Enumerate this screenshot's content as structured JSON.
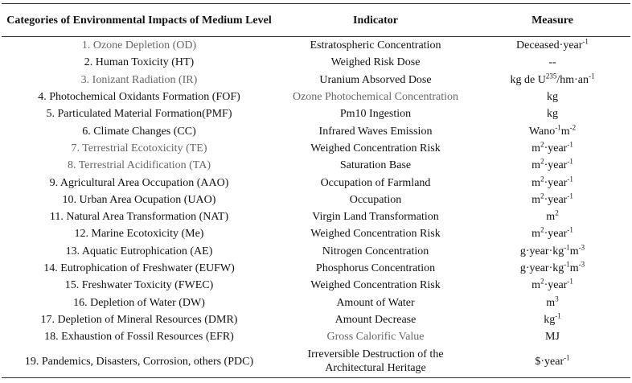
{
  "table": {
    "header": [
      "Categories of Environmental Impacts of Medium Level",
      "Indicator",
      "Measure"
    ],
    "rows": [
      [
        "1. Ozone Depletion (OD)",
        "Estratospheric Concentration",
        [
          "Deceased·year",
          "-1"
        ]
      ],
      [
        "2. Human Toxicity (HT)",
        "Weighed Risk Dose",
        [
          "--"
        ]
      ],
      [
        "3. Ionizant Radiation (IR)",
        "Uranium Absorved Dose",
        [
          "kg de U",
          "235",
          "/hm·an",
          "-1"
        ]
      ],
      [
        "4. Photochemical Oxidants Formation (FOF)",
        "Ozone Photochemical Concentration",
        [
          "kg"
        ]
      ],
      [
        "5. Particulated Material Formation(PMF)",
        "Pm10 Ingestion",
        [
          "kg"
        ]
      ],
      [
        "6. Climate Changes (CC)",
        "Infrared Waves Emission",
        [
          "Wano",
          "-1",
          "m",
          "-2"
        ]
      ],
      [
        "7. Terrestrial Ecotoxicity (TE)",
        "Weighed Concentration Risk",
        [
          "m",
          "2",
          "·year",
          "-1"
        ]
      ],
      [
        "8. Terrestrial Acidification (TA)",
        "Saturation Base",
        [
          "m",
          "2",
          "·year",
          "-1"
        ]
      ],
      [
        "9. Agricultural Area Occupation (AAO)",
        "Occupation of Farmland",
        [
          "m",
          "2",
          "·year",
          "-1"
        ]
      ],
      [
        "10. Urban Area Ocupation (UAO)",
        "Occupation",
        [
          "m",
          "2",
          "·year",
          "-1"
        ]
      ],
      [
        "11. Natural Area Transformation (NAT)",
        "Virgin Land Transformation",
        [
          "m",
          "2"
        ]
      ],
      [
        "12. Marine Ecotoxicity (Me)",
        "Weighed Concentration Risk",
        [
          "m",
          "2",
          "·year",
          "-1"
        ]
      ],
      [
        "13. Aquatic Eutrophication (AE)",
        "Nitrogen Concentration",
        [
          "g·year·kg",
          "-1",
          "m",
          "-3"
        ]
      ],
      [
        "14. Eutrophication of Freshwater (EUFW)",
        "Phosphorus Concentration",
        [
          "g·year·kg",
          "-1",
          "m",
          "-3"
        ]
      ],
      [
        "15. Freshwater Toxicity (FWEC)",
        "Weighed Concentration Risk",
        [
          "m",
          "2",
          "·year",
          "-1"
        ]
      ],
      [
        "16. Depletion of Water (DW)",
        "Amount of Water",
        [
          "m",
          "3"
        ]
      ],
      [
        "17. Depletion of Mineral Resources (DMR)",
        "Amount Decrease",
        [
          "kg",
          "-1"
        ]
      ],
      [
        "18. Exhaustion of Fossil Resources (EFR)",
        "Gross Calorific Value",
        [
          "MJ"
        ]
      ],
      [
        "19. Pandemics, Disasters, Corrosion, others (PDC)",
        "Irreversible Destruction of the Architectural Heritage",
        [
          "$·year",
          "-1"
        ]
      ]
    ]
  }
}
